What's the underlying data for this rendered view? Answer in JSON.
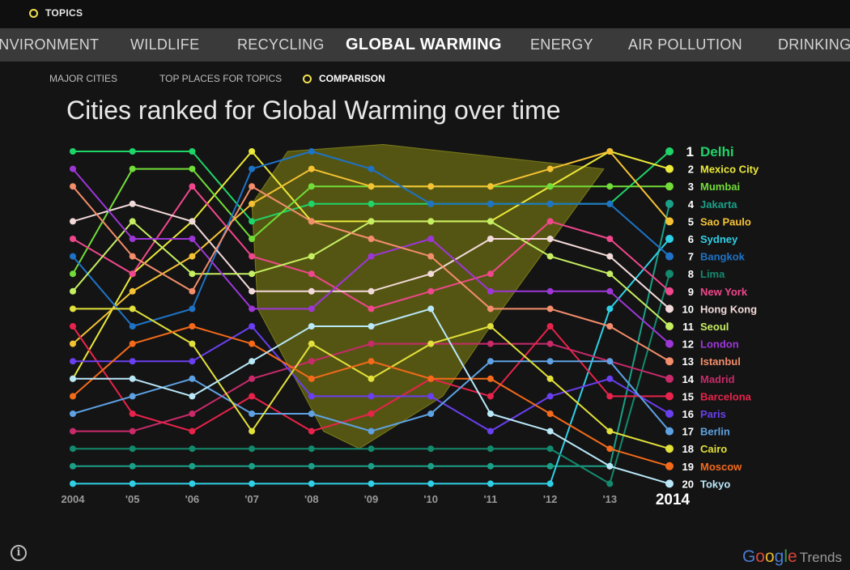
{
  "topbar": {
    "topics_label": "TOPICS"
  },
  "tabs": [
    {
      "label": "ENVIRONMENT",
      "active": false
    },
    {
      "label": "WILDLIFE",
      "active": false
    },
    {
      "label": "RECYCLING",
      "active": false
    },
    {
      "label": "GLOBAL WARMING",
      "active": true
    },
    {
      "label": "ENERGY",
      "active": false
    },
    {
      "label": "AIR POLLUTION",
      "active": false
    },
    {
      "label": "DRINKING",
      "active": false
    }
  ],
  "subnav": {
    "major_cities": "MAJOR CITIES",
    "top_places": "TOP PLACES FOR TOPICS",
    "comparison": "COMPARISON"
  },
  "footer": {
    "brand": [
      "G",
      "o",
      "o",
      "g",
      "l",
      "e"
    ],
    "brand_suffix": "Trends",
    "info_label": "i"
  },
  "chart_data": {
    "type": "line",
    "title": "Cities ranked for Global Warming over time",
    "x": [
      "2004",
      "'05",
      "'06",
      "'07",
      "'08",
      "'09",
      "'10",
      "'11",
      "'12",
      "'13",
      "2014"
    ],
    "y_axis": "rank (1 = top)",
    "ylim": [
      1,
      20
    ],
    "invert_y": true,
    "series": [
      {
        "name": "Delhi",
        "color": "#1fd468",
        "values": [
          1,
          1,
          1,
          5,
          4,
          4,
          4,
          4,
          4,
          4,
          1
        ]
      },
      {
        "name": "Mexico City",
        "color": "#ecea3a",
        "values": [
          14,
          8,
          5,
          1,
          5,
          5,
          5,
          5,
          3,
          1,
          2
        ]
      },
      {
        "name": "Mumbai",
        "color": "#72dd38",
        "values": [
          8,
          2,
          2,
          6,
          3,
          3,
          3,
          3,
          3,
          3,
          3
        ]
      },
      {
        "name": "Jakarta",
        "color": "#1aa088",
        "values": [
          19,
          19,
          19,
          19,
          19,
          19,
          19,
          19,
          19,
          19,
          4
        ]
      },
      {
        "name": "Sao Paulo",
        "color": "#f4c233",
        "values": [
          12,
          9,
          7,
          4,
          2,
          3,
          3,
          3,
          2,
          1,
          5
        ]
      },
      {
        "name": "Sydney",
        "color": "#2fd0e6",
        "values": [
          20,
          20,
          20,
          20,
          20,
          20,
          20,
          20,
          20,
          10,
          6
        ]
      },
      {
        "name": "Bangkok",
        "color": "#1e73c6",
        "values": [
          7,
          11,
          10,
          2,
          1,
          2,
          4,
          4,
          4,
          4,
          7
        ]
      },
      {
        "name": "Lima",
        "color": "#138a6d",
        "values": [
          18,
          18,
          18,
          18,
          18,
          18,
          18,
          18,
          18,
          20,
          8
        ]
      },
      {
        "name": "New York",
        "color": "#f0478c",
        "values": [
          6,
          8,
          3,
          7,
          8,
          10,
          9,
          8,
          5,
          6,
          9
        ]
      },
      {
        "name": "Hong Kong",
        "color": "#f3dada",
        "values": [
          5,
          4,
          5,
          9,
          9,
          9,
          8,
          6,
          6,
          7,
          10
        ]
      },
      {
        "name": "Seoul",
        "color": "#c6ee62",
        "values": [
          9,
          5,
          8,
          8,
          7,
          5,
          5,
          5,
          7,
          8,
          11
        ]
      },
      {
        "name": "London",
        "color": "#9c37d6",
        "values": [
          2,
          6,
          6,
          10,
          10,
          7,
          6,
          9,
          9,
          9,
          12
        ]
      },
      {
        "name": "Istanbul",
        "color": "#f38d6b",
        "values": [
          3,
          7,
          9,
          3,
          5,
          6,
          7,
          10,
          10,
          11,
          13
        ]
      },
      {
        "name": "Madrid",
        "color": "#c82a6a",
        "values": [
          17,
          17,
          16,
          14,
          13,
          12,
          12,
          12,
          12,
          13,
          14
        ]
      },
      {
        "name": "Barcelona",
        "color": "#e8234b",
        "values": [
          11,
          16,
          17,
          15,
          17,
          16,
          14,
          15,
          11,
          15,
          15
        ]
      },
      {
        "name": "Paris",
        "color": "#6a3ff0",
        "values": [
          13,
          13,
          13,
          11,
          15,
          15,
          15,
          17,
          15,
          14,
          16
        ]
      },
      {
        "name": "Berlin",
        "color": "#5ea2e4",
        "values": [
          16,
          15,
          14,
          16,
          16,
          17,
          16,
          13,
          13,
          13,
          17
        ]
      },
      {
        "name": "Cairo",
        "color": "#e2e03a",
        "values": [
          10,
          10,
          12,
          17,
          12,
          14,
          12,
          11,
          14,
          17,
          18
        ]
      },
      {
        "name": "Moscow",
        "color": "#f46a1a",
        "values": [
          15,
          12,
          11,
          12,
          14,
          13,
          14,
          14,
          16,
          18,
          19
        ]
      },
      {
        "name": "Tokyo",
        "color": "#b9e8f8",
        "values": [
          14,
          14,
          15,
          13,
          11,
          11,
          10,
          16,
          17,
          19,
          20
        ]
      }
    ]
  }
}
